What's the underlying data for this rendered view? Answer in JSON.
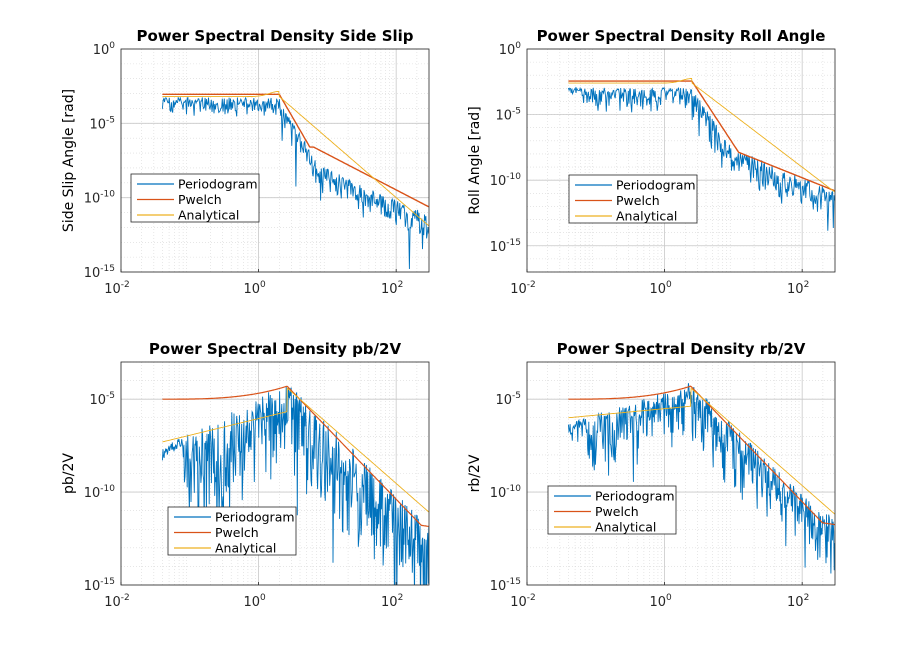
{
  "colors": {
    "periodogram": "#0072BD",
    "pwelch": "#D95319",
    "analytical": "#EDB120"
  },
  "chart_data": [
    {
      "id": "side-slip",
      "type": "line",
      "title": "Power Spectral Density Side Slip",
      "ylabel": "Side Slip Angle [rad]",
      "xlabel": "",
      "xscale": "log",
      "yscale": "log",
      "xlim": [
        0.01,
        300
      ],
      "ylim": [
        1e-15,
        1
      ],
      "xticks": [
        {
          "base": "10",
          "exp": "-2"
        },
        {
          "base": "10",
          "exp": "0"
        },
        {
          "base": "10",
          "exp": "2"
        }
      ],
      "yticks": [
        {
          "base": "10",
          "exp": "-15"
        },
        {
          "base": "10",
          "exp": "-10"
        },
        {
          "base": "10",
          "exp": "-5"
        },
        {
          "base": "10",
          "exp": "0"
        }
      ],
      "legend": {
        "position": "lower-left",
        "entries": [
          "Periodogram",
          "Pwelch",
          "Analytical"
        ]
      },
      "model": {
        "a_lo": -3.2,
        "a_peak": -2.7,
        "f0": 2.0,
        "tail_slope_an": -4,
        "tail_slope_pw": -2.4,
        "shelf_pw": -6.6,
        "pd_lo": -3.4,
        "pd_spread": 1.6,
        "pd_shelf_drop": 1.2,
        "pd_tail_slope": -2.1,
        "pw_band": 0.25
      }
    },
    {
      "id": "roll-angle",
      "type": "line",
      "title": "Power Spectral Density Roll Angle",
      "ylabel": "Roll Angle [rad]",
      "xlabel": "",
      "xscale": "log",
      "yscale": "log",
      "xlim": [
        0.01,
        300
      ],
      "ylim": [
        1e-17,
        1
      ],
      "xticks": [
        {
          "base": "10",
          "exp": "-2"
        },
        {
          "base": "10",
          "exp": "0"
        },
        {
          "base": "10",
          "exp": "2"
        }
      ],
      "yticks": [
        {
          "base": "10",
          "exp": "-15"
        },
        {
          "base": "10",
          "exp": "-10"
        },
        {
          "base": "10",
          "exp": "-5"
        },
        {
          "base": "10",
          "exp": "0"
        }
      ],
      "legend": {
        "position": "lower-left",
        "entries": [
          "Periodogram",
          "Pwelch",
          "Analytical"
        ]
      },
      "model": {
        "a_lo": -2.6,
        "a_peak": -2.7,
        "f0": 2.5,
        "tail_slope_an": -4,
        "tail_slope_pw": -2.1,
        "shelf_pw": -7.5,
        "pd_lo": -3.1,
        "pd_spread": 1.8,
        "pd_shelf_drop": 0.0,
        "pd_tail_slope": -2.2,
        "pw_band": 0.4
      }
    },
    {
      "id": "pb-2v",
      "type": "line",
      "title": "Power Spectral Density pb/2V",
      "ylabel": "pb/2V",
      "xlabel": "",
      "xscale": "log",
      "yscale": "log",
      "xlim": [
        0.01,
        300
      ],
      "ylim": [
        1e-15,
        0.001
      ],
      "xticks": [
        {
          "base": "10",
          "exp": "-2"
        },
        {
          "base": "10",
          "exp": "0"
        },
        {
          "base": "10",
          "exp": "2"
        }
      ],
      "yticks": [
        {
          "base": "10",
          "exp": "-15"
        },
        {
          "base": "10",
          "exp": "-10"
        },
        {
          "base": "10",
          "exp": "-5"
        }
      ],
      "legend": {
        "position": "lower-left",
        "entries": [
          "Periodogram",
          "Pwelch",
          "Analytical"
        ]
      },
      "model": {
        "pw_lo": -5.0,
        "pw_peak": -4.3,
        "an_lo": -7.3,
        "an_lo_slope": 0.9,
        "f0": 2.6,
        "tail_slope": -2.4,
        "pw_floor": -11.3,
        "pd_lo": -7.8,
        "pd_spread": 3.0
      }
    },
    {
      "id": "rb-2v",
      "type": "line",
      "title": "Power Spectral Density rb/2V",
      "ylabel": "rb/2V",
      "xlabel": "",
      "xscale": "log",
      "yscale": "log",
      "xlim": [
        0.01,
        300
      ],
      "ylim": [
        1e-15,
        0.001
      ],
      "xticks": [
        {
          "base": "10",
          "exp": "-2"
        },
        {
          "base": "10",
          "exp": "0"
        },
        {
          "base": "10",
          "exp": "2"
        }
      ],
      "yticks": [
        {
          "base": "10",
          "exp": "-15"
        },
        {
          "base": "10",
          "exp": "-10"
        },
        {
          "base": "10",
          "exp": "-5"
        }
      ],
      "legend": {
        "position": "lower-left",
        "entries": [
          "Periodogram",
          "Pwelch",
          "Analytical"
        ]
      },
      "model": {
        "pw_lo": -5.0,
        "pw_peak": -4.3,
        "an_lo": -6.0,
        "an_lo_slope": 0.35,
        "f0": 2.4,
        "tail_slope": -2.4,
        "pw_floor": -11.2,
        "pd_lo": -6.5,
        "pd_spread": 1.8
      }
    }
  ]
}
